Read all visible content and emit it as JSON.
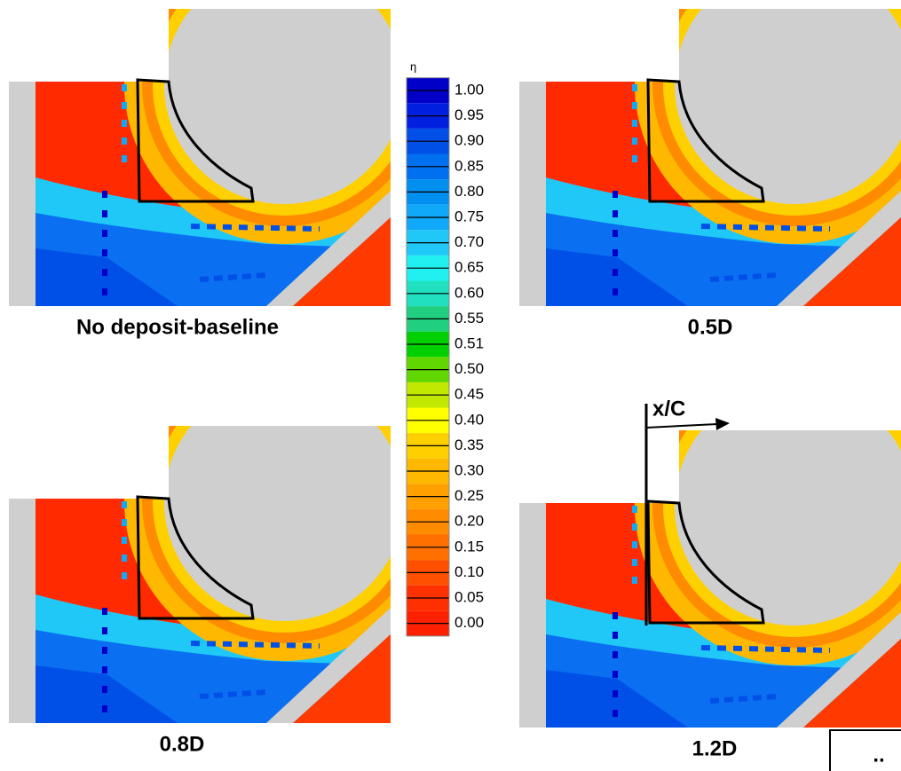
{
  "colorbar": {
    "title": "η",
    "levels": [
      {
        "label": "1.00",
        "color": "#0000c8"
      },
      {
        "label": "0.95",
        "color": "#0020e0"
      },
      {
        "label": "0.90",
        "color": "#0050e8"
      },
      {
        "label": "0.85",
        "color": "#0070f0"
      },
      {
        "label": "0.80",
        "color": "#0090f0"
      },
      {
        "label": "0.75",
        "color": "#10a8f8"
      },
      {
        "label": "0.70",
        "color": "#20c8f8"
      },
      {
        "label": "0.65",
        "color": "#20f0f0"
      },
      {
        "label": "0.60",
        "color": "#20e0c0"
      },
      {
        "label": "0.55",
        "color": "#20d080"
      },
      {
        "label": "0.51",
        "color": "#00d000"
      },
      {
        "label": "0.50",
        "color": "#60d800"
      },
      {
        "label": "0.45",
        "color": "#c0e800"
      },
      {
        "label": "0.40",
        "color": "#ffff00"
      },
      {
        "label": "0.35",
        "color": "#ffd000"
      },
      {
        "label": "0.30",
        "color": "#ffb800"
      },
      {
        "label": "0.25",
        "color": "#ffa000"
      },
      {
        "label": "0.20",
        "color": "#ff8c00"
      },
      {
        "label": "0.15",
        "color": "#ff7000"
      },
      {
        "label": "0.10",
        "color": "#ff5000"
      },
      {
        "label": "0.05",
        "color": "#ff3000"
      },
      {
        "label": "0.00",
        "color": "#ff2000"
      }
    ]
  },
  "panels": [
    {
      "label": "No deposit-baseline"
    },
    {
      "label": "0.5D"
    },
    {
      "label": "0.8D"
    },
    {
      "label": "1.2D"
    }
  ],
  "axis_label": "x/C",
  "corner_note": ".."
}
